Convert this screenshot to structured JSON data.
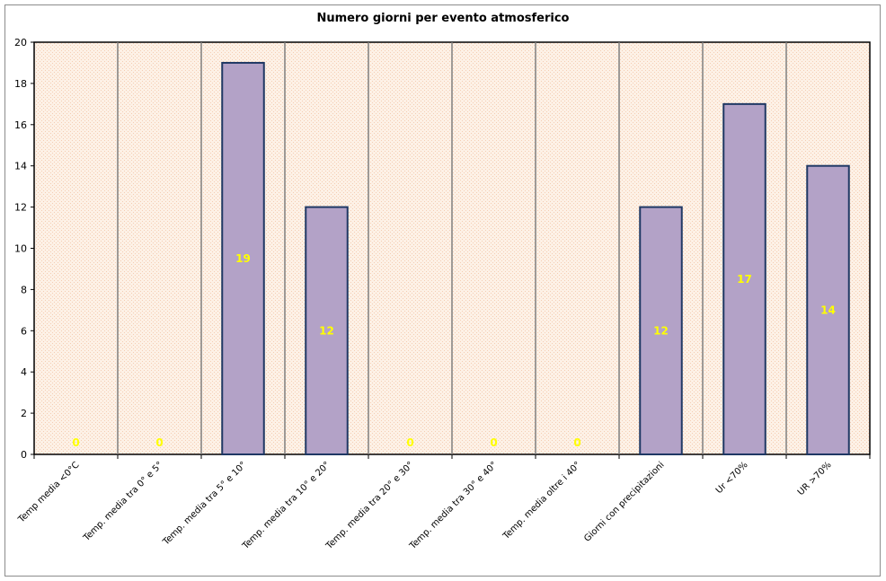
{
  "chart_data": {
    "type": "bar",
    "title": "Numero giorni per evento atmosferico",
    "categories": [
      "Temp media <0°C",
      "Temp. media tra 0° e 5°",
      "Temp. media tra 5° e 10°",
      "Temp. media tra 10° e 20°",
      "Temp. media tra 20° e 30°",
      "Temp. media tra 30° e 40°",
      "Temp. media oltre i 40°",
      "Giorni con precipitazioni",
      "Ur <70%",
      "UR >70%"
    ],
    "values": [
      0,
      0,
      19,
      12,
      0,
      0,
      0,
      12,
      17,
      14
    ],
    "data_labels": [
      "0",
      "0",
      "19",
      "12",
      "0",
      "0",
      "0",
      "12",
      "17",
      "14"
    ],
    "ylim": [
      0,
      20
    ],
    "yticks": [
      "0",
      "2",
      "4",
      "6",
      "8",
      "10",
      "12",
      "14",
      "16",
      "18",
      "20"
    ],
    "xlabel": "",
    "ylabel": "",
    "grid": "vertical lines between categories",
    "legend": "none",
    "colors": {
      "bar_fill": "#b3a2c7",
      "bar_stroke": "#1f3864",
      "plot_background": "#fdf2e9",
      "grid_line": "#7f7f7f",
      "data_label": "#ffff00"
    }
  }
}
